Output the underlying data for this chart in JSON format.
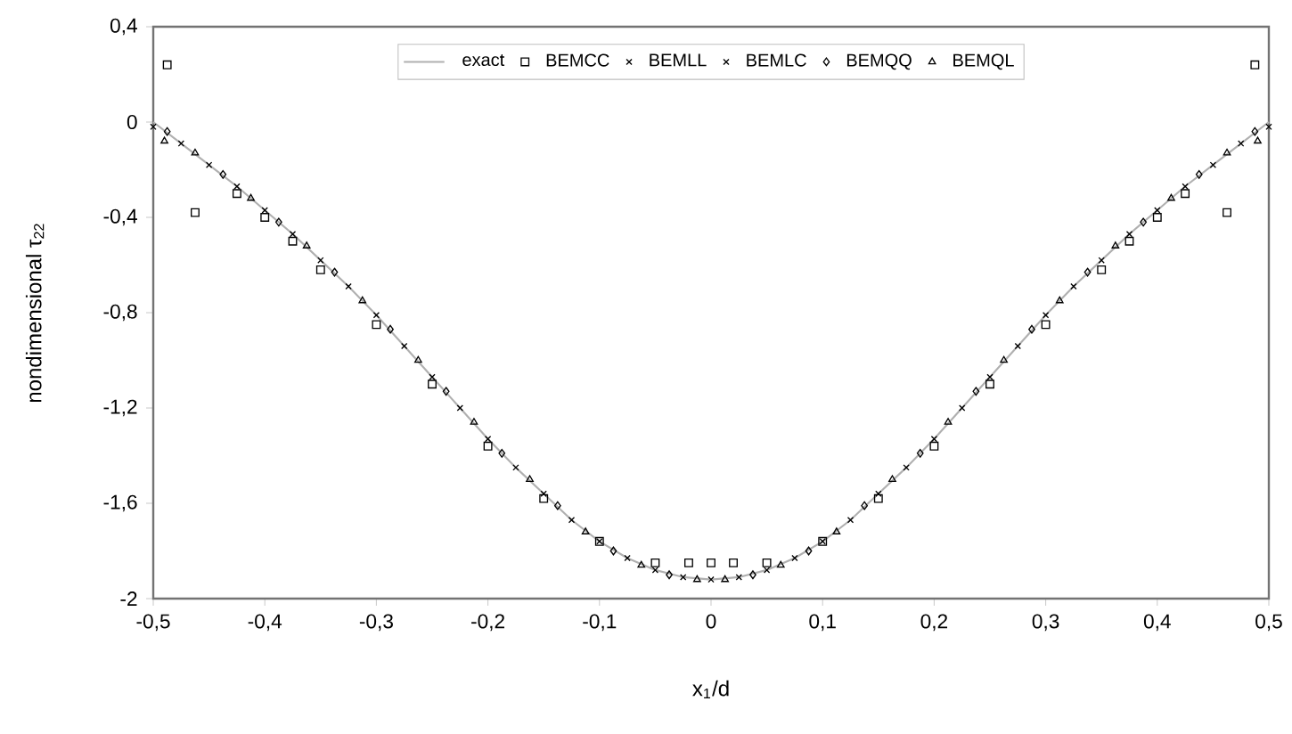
{
  "chart_data": {
    "type": "line",
    "xlabel": "x$_{1}$/d",
    "ylabel": "nondimensional τ$_{22}$",
    "xlim": [
      -0.5,
      0.5
    ],
    "ylim": [
      -2,
      0.4
    ],
    "xticks": [
      {
        "value": -0.5,
        "label": "-0,5"
      },
      {
        "value": -0.4,
        "label": "-0,4"
      },
      {
        "value": -0.3,
        "label": "-0,3"
      },
      {
        "value": -0.2,
        "label": "-0,2"
      },
      {
        "value": -0.1,
        "label": "-0,1"
      },
      0,
      {
        "value": 0.1,
        "label": "0,1"
      },
      {
        "value": 0.2,
        "label": "0,2"
      },
      {
        "value": 0.3,
        "label": "0,3"
      },
      {
        "value": 0.4,
        "label": "0,4"
      },
      {
        "value": 0.5,
        "label": "0,5"
      }
    ],
    "yticks": [
      -2,
      {
        "value": -1.6,
        "label": "-1,6"
      },
      {
        "value": -1.2,
        "label": "-1,2"
      },
      {
        "value": -0.8,
        "label": "-0,8"
      },
      {
        "value": -0.4,
        "label": "-0,4"
      },
      0,
      {
        "value": 0.4,
        "label": "0,4"
      }
    ],
    "grid": false,
    "legend": "top",
    "series": [
      {
        "name": "exact",
        "color": "#b0b0b0",
        "marker": "none",
        "x": [
          -0.5,
          -0.475,
          -0.45,
          -0.425,
          -0.4,
          -0.375,
          -0.35,
          -0.325,
          -0.3,
          -0.275,
          -0.25,
          -0.225,
          -0.2,
          -0.175,
          -0.15,
          -0.125,
          -0.1,
          -0.075,
          -0.05,
          -0.025,
          0,
          0.025,
          0.05,
          0.075,
          0.1,
          0.125,
          0.15,
          0.175,
          0.2,
          0.225,
          0.25,
          0.275,
          0.3,
          0.325,
          0.35,
          0.375,
          0.4,
          0.425,
          0.45,
          0.475,
          0.5
        ],
        "values": [
          0,
          -0.09,
          -0.18,
          -0.27,
          -0.37,
          -0.47,
          -0.58,
          -0.69,
          -0.81,
          -0.94,
          -1.07,
          -1.2,
          -1.33,
          -1.45,
          -1.56,
          -1.67,
          -1.76,
          -1.83,
          -1.88,
          -1.91,
          -1.92,
          -1.91,
          -1.88,
          -1.83,
          -1.76,
          -1.67,
          -1.56,
          -1.45,
          -1.33,
          -1.2,
          -1.07,
          -0.94,
          -0.81,
          -0.69,
          -0.58,
          -0.47,
          -0.37,
          -0.27,
          -0.18,
          -0.09,
          0
        ]
      },
      {
        "name": "BEMCC",
        "color": "#000000",
        "type": "scatter",
        "marker": "square",
        "x": [
          -0.4875,
          -0.4625,
          -0.425,
          -0.4,
          -0.375,
          -0.35,
          -0.3,
          -0.25,
          -0.2,
          -0.15,
          -0.1,
          -0.05,
          -0.02,
          0,
          0.02,
          0.05,
          0.1,
          0.15,
          0.2,
          0.25,
          0.3,
          0.35,
          0.375,
          0.4,
          0.425,
          0.4625,
          0.4875
        ],
        "values": [
          0.24,
          -0.38,
          -0.3,
          -0.4,
          -0.5,
          -0.62,
          -0.85,
          -1.1,
          -1.36,
          -1.58,
          -1.76,
          -1.85,
          -1.85,
          -1.85,
          -1.85,
          -1.85,
          -1.76,
          -1.58,
          -1.36,
          -1.1,
          -0.85,
          -0.62,
          -0.5,
          -0.4,
          -0.3,
          -0.38,
          0.24
        ]
      },
      {
        "name": "BEMLL",
        "color": "#000000",
        "type": "scatter",
        "marker": "cross",
        "x": [
          -0.5,
          -0.45,
          -0.4,
          -0.35,
          -0.3,
          -0.25,
          -0.2,
          -0.15,
          -0.1,
          -0.05,
          0,
          0.05,
          0.1,
          0.15,
          0.2,
          0.25,
          0.3,
          0.35,
          0.4,
          0.45,
          0.5
        ],
        "values": [
          -0.02,
          -0.18,
          -0.37,
          -0.58,
          -0.81,
          -1.07,
          -1.33,
          -1.56,
          -1.76,
          -1.88,
          -1.92,
          -1.88,
          -1.76,
          -1.56,
          -1.33,
          -1.07,
          -0.81,
          -0.58,
          -0.37,
          -0.18,
          -0.02
        ]
      },
      {
        "name": "BEMLC",
        "color": "#000000",
        "type": "scatter",
        "marker": "cross",
        "x": [
          -0.475,
          -0.425,
          -0.375,
          -0.325,
          -0.275,
          -0.225,
          -0.175,
          -0.125,
          -0.075,
          -0.025,
          0.025,
          0.075,
          0.125,
          0.175,
          0.225,
          0.275,
          0.325,
          0.375,
          0.425,
          0.475
        ],
        "values": [
          -0.09,
          -0.27,
          -0.47,
          -0.69,
          -0.94,
          -1.2,
          -1.45,
          -1.67,
          -1.83,
          -1.91,
          -1.91,
          -1.83,
          -1.67,
          -1.45,
          -1.2,
          -0.94,
          -0.69,
          -0.47,
          -0.27,
          -0.09
        ]
      },
      {
        "name": "BEMQQ",
        "color": "#000000",
        "type": "scatter",
        "marker": "diamond",
        "x": [
          -0.4875,
          -0.4375,
          -0.3875,
          -0.3375,
          -0.2875,
          -0.2375,
          -0.1875,
          -0.1375,
          -0.0875,
          -0.0375,
          0.0375,
          0.0875,
          0.1375,
          0.1875,
          0.2375,
          0.2875,
          0.3375,
          0.3875,
          0.4375,
          0.4875
        ],
        "values": [
          -0.04,
          -0.22,
          -0.42,
          -0.63,
          -0.87,
          -1.13,
          -1.39,
          -1.61,
          -1.8,
          -1.9,
          -1.9,
          -1.8,
          -1.61,
          -1.39,
          -1.13,
          -0.87,
          -0.63,
          -0.42,
          -0.22,
          -0.04
        ]
      },
      {
        "name": "BEMQL",
        "color": "#000000",
        "type": "scatter",
        "marker": "triangle",
        "x": [
          -0.49,
          -0.4625,
          -0.4125,
          -0.3625,
          -0.3125,
          -0.2625,
          -0.2125,
          -0.1625,
          -0.1125,
          -0.0625,
          -0.0125,
          0.0125,
          0.0625,
          0.1125,
          0.1625,
          0.2125,
          0.2625,
          0.3125,
          0.3625,
          0.4125,
          0.4625,
          0.49
        ],
        "values": [
          -0.08,
          -0.13,
          -0.32,
          -0.52,
          -0.75,
          -1.0,
          -1.26,
          -1.5,
          -1.72,
          -1.86,
          -1.92,
          -1.92,
          -1.86,
          -1.72,
          -1.5,
          -1.26,
          -1.0,
          -0.75,
          -0.52,
          -0.32,
          -0.13,
          -0.08
        ]
      }
    ]
  }
}
